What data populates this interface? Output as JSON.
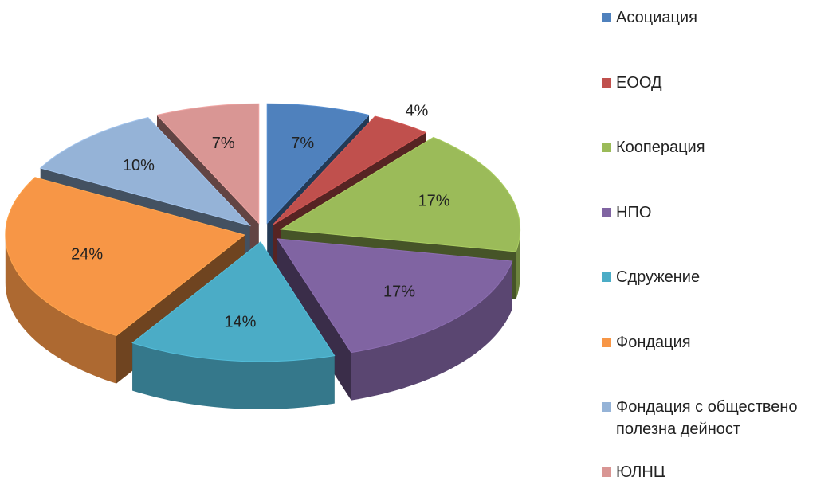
{
  "chart_data": {
    "type": "pie",
    "categories": [
      "Асоциация",
      "ЕООД",
      "Кооперация",
      "НПО",
      "Сдружение",
      "Фондация",
      "Фондация с обществено полезна дейност",
      "ЮЛНЦ"
    ],
    "values": [
      7,
      4,
      17,
      17,
      14,
      24,
      10,
      7
    ],
    "value_labels": [
      "7%",
      "4%",
      "17%",
      "17%",
      "14%",
      "24%",
      "10%",
      "7%"
    ],
    "colors": [
      "#4f81bd",
      "#c0504d",
      "#9bbb59",
      "#8064a2",
      "#4bacc6",
      "#f79646",
      "#95b3d7",
      "#d99694"
    ],
    "legend": "right"
  }
}
